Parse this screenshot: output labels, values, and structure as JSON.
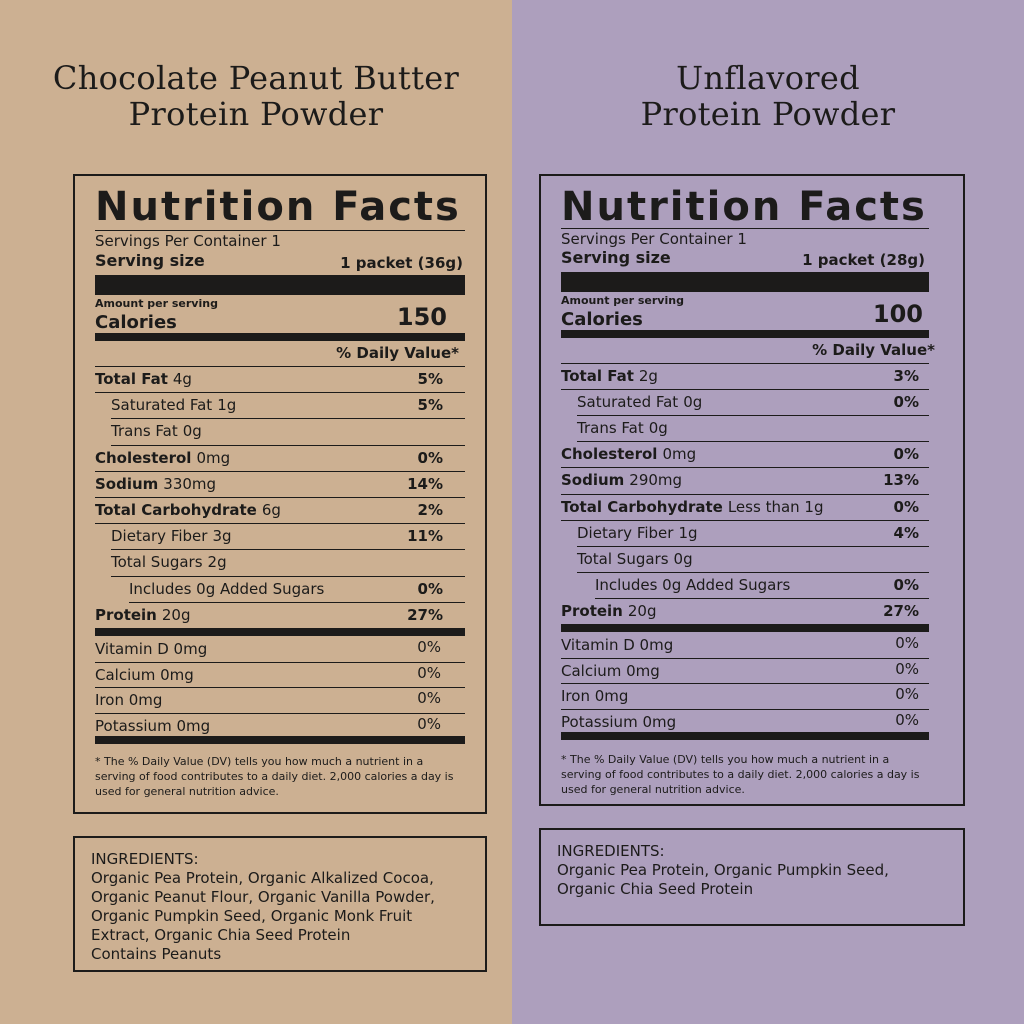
{
  "colors": {
    "left_bg": "#ccb092",
    "right_bg": "#ad9fbd",
    "ink": "#1c1b1a"
  },
  "left": {
    "title_line1": "Chocolate Peanut Butter",
    "title_line2": "Protein Powder",
    "label": {
      "heading": "Nutrition Facts",
      "servings": "Servings Per Container 1",
      "serving_size_label": "Serving size",
      "serving_size_value": "1 packet (36g)",
      "amount_per_serving": "Amount per serving",
      "calories_label": "Calories",
      "calories_value": "150",
      "dv_header": "% Daily Value*",
      "rows": [
        {
          "name": "Total Fat",
          "amount": "4g",
          "dv": "5%"
        },
        {
          "name": "Saturated Fat",
          "amount": "1g",
          "dv": "5%"
        },
        {
          "name": "Trans Fat",
          "amount": "0g",
          "dv": ""
        },
        {
          "name": "Cholesterol",
          "amount": "0mg",
          "dv": "0%"
        },
        {
          "name": "Sodium",
          "amount": "330mg",
          "dv": "14%"
        },
        {
          "name": "Total Carbohydrate",
          "amount": "6g",
          "dv": "2%"
        },
        {
          "name": "Dietary Fiber",
          "amount": "3g",
          "dv": "11%"
        },
        {
          "name": "Total Sugars",
          "amount": "2g",
          "dv": ""
        },
        {
          "name": "Includes 0g Added Sugars",
          "amount": "",
          "dv": "0%"
        },
        {
          "name": "Protein",
          "amount": "20g",
          "dv": "27%"
        }
      ],
      "vitamins": [
        {
          "name": "Vitamin D 0mg",
          "dv": "0%"
        },
        {
          "name": "Calcium 0mg",
          "dv": "0%"
        },
        {
          "name": "Iron 0mg",
          "dv": "0%"
        },
        {
          "name": "Potassium 0mg",
          "dv": "0%"
        }
      ],
      "footnote": "* The % Daily Value (DV) tells you how much a nutrient in a serving of food contributes to a daily diet. 2,000 calories a day is used for general nutrition advice."
    },
    "ingredients": {
      "heading": "INGREDIENTS:",
      "line1": "Organic Pea Protein, Organic Alkalized Cocoa,",
      "line2": "Organic Peanut Flour, Organic Vanilla Powder,",
      "line3": "Organic Pumpkin Seed, Organic Monk Fruit",
      "line4": "Extract, Organic Chia Seed Protein",
      "line5": "Contains Peanuts"
    }
  },
  "right": {
    "title_line1": "Unflavored",
    "title_line2": "Protein Powder",
    "label": {
      "heading": "Nutrition Facts",
      "servings": "Servings Per Container 1",
      "serving_size_label": "Serving size",
      "serving_size_value": "1 packet (28g)",
      "amount_per_serving": "Amount per serving",
      "calories_label": "Calories",
      "calories_value": "100",
      "dv_header": "% Daily Value*",
      "rows": [
        {
          "name": "Total Fat",
          "amount": "2g",
          "dv": "3%"
        },
        {
          "name": "Saturated Fat",
          "amount": "0g",
          "dv": "0%"
        },
        {
          "name": "Trans Fat",
          "amount": "0g",
          "dv": ""
        },
        {
          "name": "Cholesterol",
          "amount": "0mg",
          "dv": "0%"
        },
        {
          "name": "Sodium",
          "amount": "290mg",
          "dv": "13%"
        },
        {
          "name": "Total Carbohydrate",
          "amount": "Less than 1g",
          "dv": "0%"
        },
        {
          "name": "Dietary Fiber",
          "amount": "1g",
          "dv": "4%"
        },
        {
          "name": "Total Sugars",
          "amount": "0g",
          "dv": ""
        },
        {
          "name": "Includes 0g Added Sugars",
          "amount": "",
          "dv": "0%"
        },
        {
          "name": "Protein",
          "amount": "20g",
          "dv": "27%"
        }
      ],
      "vitamins": [
        {
          "name": "Vitamin D 0mg",
          "dv": "0%"
        },
        {
          "name": "Calcium 0mg",
          "dv": "0%"
        },
        {
          "name": "Iron 0mg",
          "dv": "0%"
        },
        {
          "name": "Potassium 0mg",
          "dv": "0%"
        }
      ],
      "footnote": "* The % Daily Value (DV) tells you how much a nutrient in a serving of food contributes to a daily diet. 2,000 calories a day is used for general nutrition advice."
    },
    "ingredients": {
      "heading": "INGREDIENTS:",
      "line1": "Organic Pea Protein, Organic Pumpkin Seed,",
      "line2": "Organic Chia Seed Protein"
    }
  }
}
